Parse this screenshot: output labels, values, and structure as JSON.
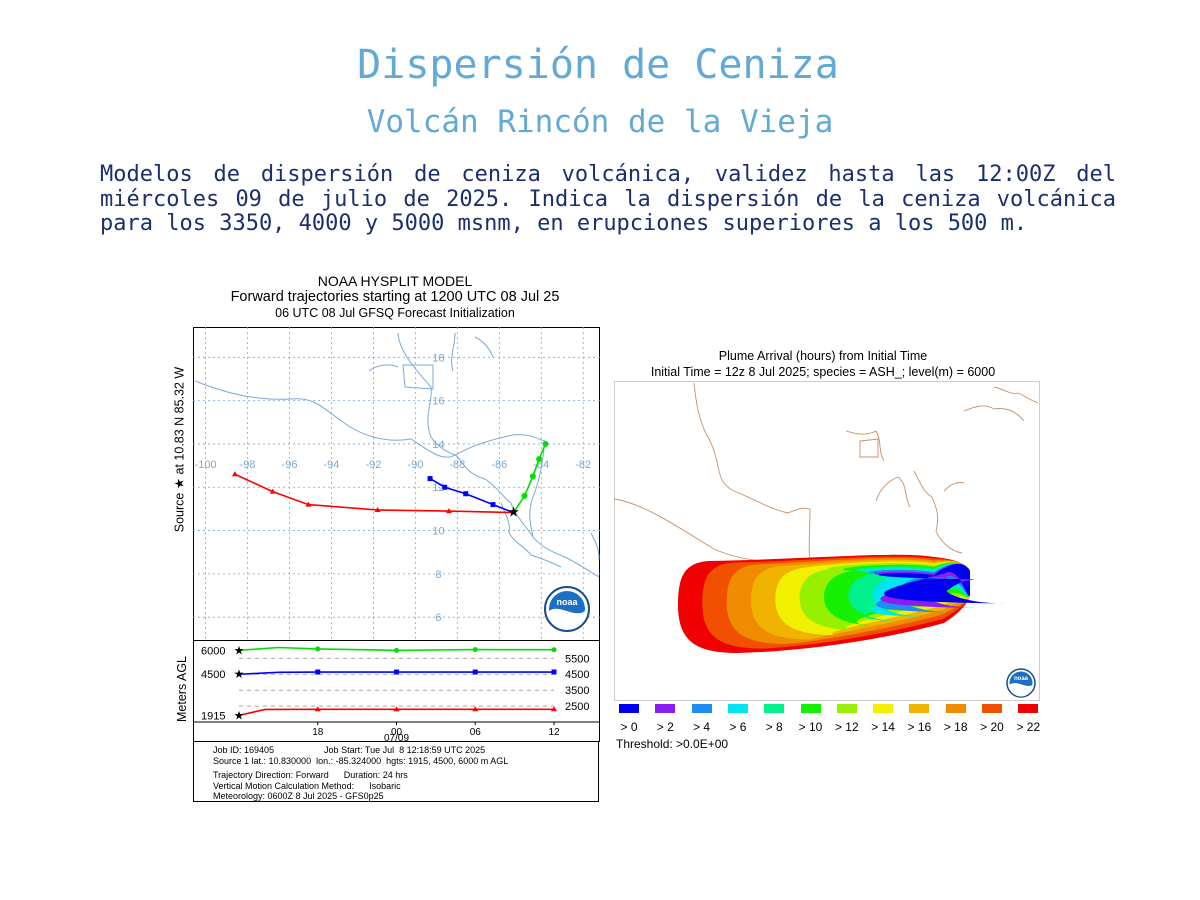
{
  "header": {
    "title": "Dispersión de Ceniza",
    "subtitle": "Volcán Rincón de la Vieja",
    "description": "Modelos de dispersión de ceniza volcánica, validez hasta las 12:00Z del miércoles 09 de julio de 2025. Indica la dispersión de la ceniza volcánica para los 3350, 4000 y 5000 msnm, en erupciones superiores a los 500 m."
  },
  "trajectory_figure": {
    "header_line1": "NOAA HYSPLIT MODEL",
    "header_line2": "Forward trajectories starting at 1200 UTC 08 Jul 25",
    "header_line3": "06 UTC 08 Jul    GFSQ  Forecast Initialization",
    "side_label": "Source ★  at   10.83 N   85.32 W",
    "height_axis_label": "Meters AGL",
    "logo_text": "noaa",
    "info": {
      "line1": "Job ID: 169405                    Job Start: Tue Jul  8 12:18:59 UTC 2025",
      "line2": "Source 1 lat.: 10.830000  lon.: -85.324000  hgts: 1915, 4500, 6000 m AGL",
      "line3": "Trajectory Direction: Forward      Duration: 24 hrs",
      "line4": "Vertical Motion Calculation Method:      Isobaric",
      "line5": "Meteorology: 0600Z 8 Jul 2025 - GFS0p25"
    }
  },
  "chart_data": [
    {
      "type": "line",
      "title": "Forward trajectories starting at 1200 UTC 08 Jul 25",
      "x_ticks": [
        "-100",
        "-98",
        "-96",
        "-94",
        "-92",
        "-90",
        "-88",
        "-86",
        "-84",
        "-82"
      ],
      "y_ticks": [
        "18",
        "16",
        "14",
        "12",
        "10",
        "8",
        "6"
      ],
      "xlim": [
        -100.6,
        -81.2
      ],
      "ylim": [
        4.9,
        19.4
      ],
      "source": {
        "lon": -85.32,
        "lat": 10.83
      },
      "series": [
        {
          "color": "#ff0000",
          "points": [
            [
              -85.32,
              10.83
            ],
            [
              -88.4,
              10.9
            ],
            [
              -91.8,
              10.95
            ],
            [
              -95.1,
              11.2
            ],
            [
              -96.8,
              11.8
            ],
            [
              -98.6,
              12.6
            ]
          ]
        },
        {
          "color": "#0000ff",
          "points": [
            [
              -85.32,
              10.83
            ],
            [
              -86.3,
              11.2
            ],
            [
              -87.6,
              11.7
            ],
            [
              -88.6,
              12.0
            ],
            [
              -89.3,
              12.4
            ]
          ]
        },
        {
          "color": "#00dd00",
          "points": [
            [
              -85.32,
              10.83
            ],
            [
              -84.8,
              11.6
            ],
            [
              -84.4,
              12.5
            ],
            [
              -84.1,
              13.3
            ],
            [
              -83.8,
              14.0
            ]
          ]
        }
      ]
    },
    {
      "type": "line",
      "xlabel": "",
      "ylabel": "Meters AGL",
      "x_ticks": [
        "18",
        "00",
        "06",
        "12"
      ],
      "x_tick_sublabel": "07/09",
      "left_ticks": [
        "6000",
        "4500",
        "1915"
      ],
      "right_ticks": [
        "5500",
        "4500",
        "3500",
        "2500"
      ],
      "ylim": [
        1500,
        6400
      ],
      "x_hours": [
        0,
        24
      ],
      "series": [
        {
          "color": "#00dd00",
          "points": [
            [
              0,
              6000
            ],
            [
              3,
              6180
            ],
            [
              6,
              6090
            ],
            [
              12,
              6000
            ],
            [
              18,
              6050
            ],
            [
              24,
              6040
            ]
          ]
        },
        {
          "color": "#0000ff",
          "points": [
            [
              0,
              4500
            ],
            [
              3,
              4620
            ],
            [
              6,
              4640
            ],
            [
              12,
              4640
            ],
            [
              18,
              4640
            ],
            [
              24,
              4640
            ]
          ]
        },
        {
          "color": "#ff0000",
          "points": [
            [
              0,
              1915
            ],
            [
              2,
              2290
            ],
            [
              6,
              2300
            ],
            [
              12,
              2300
            ],
            [
              18,
              2300
            ],
            [
              24,
              2300
            ]
          ]
        }
      ]
    },
    {
      "type": "heatmap",
      "title": "Plume Arrival (hours) from Initial Time",
      "subtitle": "Initial Time = 12z  8 Jul 2025;  species = ASH_;  level(m) =  6000",
      "legend": [
        {
          "label": "> 0",
          "color": "#0000f0"
        },
        {
          "label": "> 2",
          "color": "#8a1ef0"
        },
        {
          "label": "> 4",
          "color": "#1e8cf0"
        },
        {
          "label": "> 6",
          "color": "#00e6f0"
        },
        {
          "label": "> 8",
          "color": "#00f08c"
        },
        {
          "label": "> 10",
          "color": "#14f000"
        },
        {
          "label": "> 12",
          "color": "#96f000"
        },
        {
          "label": "> 14",
          "color": "#f0f000"
        },
        {
          "label": "> 16",
          "color": "#f0b400"
        },
        {
          "label": "> 18",
          "color": "#f08c00"
        },
        {
          "label": "> 20",
          "color": "#f05000"
        },
        {
          "label": "> 22",
          "color": "#f00000"
        }
      ],
      "threshold": "Threshold: >0.0E+00",
      "logo_text": "noaa"
    }
  ]
}
